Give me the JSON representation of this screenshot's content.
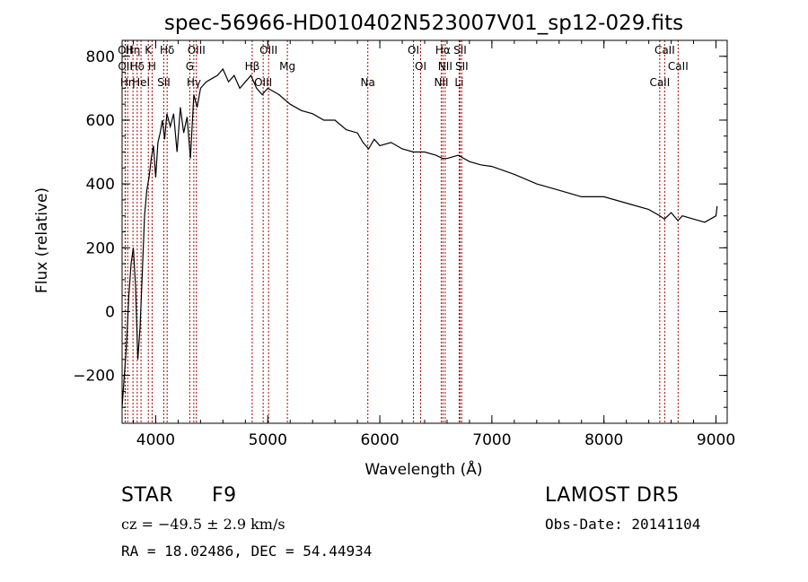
{
  "chart_data": {
    "type": "line",
    "title": "spec-56966-HD010402N523007V01_sp12-029.fits",
    "xlabel": "Wavelength (Å)",
    "ylabel": "Flux (relative)",
    "xlim": [
      3700,
      9100
    ],
    "ylim": [
      -350,
      850
    ],
    "x_ticks": [
      4000,
      5000,
      6000,
      7000,
      8000,
      9000
    ],
    "y_ticks": [
      -200,
      0,
      200,
      400,
      600,
      800
    ],
    "grid": false,
    "legend": "none",
    "line_color": "#000000",
    "marker_color": "#b00000",
    "series": [
      {
        "x": [
          3700,
          3720,
          3740,
          3760,
          3780,
          3800,
          3820,
          3840,
          3860,
          3880,
          3900,
          3920,
          3940,
          3960,
          3980,
          4000,
          4020,
          4040,
          4060,
          4080,
          4100,
          4130,
          4160,
          4190,
          4220,
          4250,
          4280,
          4310,
          4340,
          4370,
          4400,
          4450,
          4500,
          4550,
          4600,
          4650,
          4700,
          4750,
          4800,
          4850,
          4900,
          4950,
          5000,
          5100,
          5200,
          5300,
          5400,
          5500,
          5600,
          5700,
          5800,
          5850,
          5900,
          5950,
          6000,
          6100,
          6200,
          6300,
          6400,
          6500,
          6560,
          6600,
          6700,
          6800,
          6900,
          7000,
          7200,
          7400,
          7600,
          7800,
          8000,
          8200,
          8400,
          8500,
          8540,
          8600,
          8660,
          8700,
          8800,
          8900,
          9000,
          9010
        ],
        "y": [
          -300,
          -200,
          -100,
          50,
          150,
          200,
          80,
          -150,
          -50,
          120,
          300,
          380,
          420,
          480,
          520,
          420,
          530,
          560,
          600,
          540,
          620,
          580,
          620,
          500,
          640,
          560,
          610,
          480,
          680,
          640,
          700,
          720,
          730,
          740,
          760,
          720,
          740,
          700,
          720,
          740,
          700,
          680,
          700,
          680,
          650,
          630,
          620,
          600,
          600,
          570,
          560,
          530,
          510,
          540,
          520,
          530,
          510,
          500,
          500,
          490,
          480,
          480,
          490,
          470,
          460,
          455,
          430,
          400,
          380,
          360,
          360,
          340,
          320,
          300,
          290,
          310,
          285,
          300,
          290,
          280,
          300,
          330
        ]
      }
    ],
    "line_markers": [
      {
        "wavelength": 3727,
        "label": "OII"
      },
      {
        "wavelength": 3729,
        "label": "OII"
      },
      {
        "wavelength": 3750,
        "label": "Hη"
      },
      {
        "wavelength": 3797,
        "label": "Hη"
      },
      {
        "wavelength": 3835,
        "label": "Hδ"
      },
      {
        "wavelength": 3869,
        "label": "HeI"
      },
      {
        "wavelength": 3934,
        "label": "K"
      },
      {
        "wavelength": 3968,
        "label": "H"
      },
      {
        "wavelength": 4072,
        "label": "SII"
      },
      {
        "wavelength": 4102,
        "label": "Hδ"
      },
      {
        "wavelength": 4304,
        "label": "G"
      },
      {
        "wavelength": 4340,
        "label": "Hγ"
      },
      {
        "wavelength": 4363,
        "label": "OIII"
      },
      {
        "wavelength": 4861,
        "label": "Hβ"
      },
      {
        "wavelength": 4959,
        "label": "OIII"
      },
      {
        "wavelength": 5007,
        "label": "OIII"
      },
      {
        "wavelength": 5175,
        "label": "Mg"
      },
      {
        "wavelength": 5893,
        "label": "Na"
      },
      {
        "wavelength": 6300,
        "label": "OI"
      },
      {
        "wavelength": 6364,
        "label": "OI"
      },
      {
        "wavelength": 6548,
        "label": "NII"
      },
      {
        "wavelength": 6563,
        "label": "Hα"
      },
      {
        "wavelength": 6583,
        "label": "NII"
      },
      {
        "wavelength": 6708,
        "label": "Li"
      },
      {
        "wavelength": 6716,
        "label": "SII"
      },
      {
        "wavelength": 6731,
        "label": "SII"
      },
      {
        "wavelength": 8498,
        "label": "CaII"
      },
      {
        "wavelength": 8542,
        "label": "CaII"
      },
      {
        "wavelength": 8662,
        "label": "CaII"
      }
    ]
  },
  "info": {
    "object_class": "STAR",
    "subclass": "F9",
    "survey": "LAMOST DR5",
    "cz_text": "cz = −49.5 ± 2.9 km/s",
    "obs_date": "Obs-Date: 20141104",
    "coords": "RA =  18.02486, DEC =  54.44934"
  }
}
